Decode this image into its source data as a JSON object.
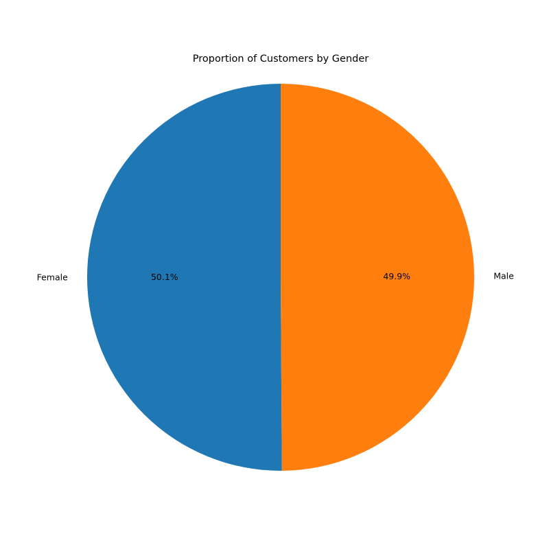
{
  "chart_data": {
    "type": "pie",
    "title": "Proportion of Customers by Gender",
    "slices": [
      {
        "label": "Female",
        "value": 50.1,
        "pct_label": "50.1%",
        "color": "#1f77b4"
      },
      {
        "label": "Male",
        "value": 49.9,
        "pct_label": "49.9%",
        "color": "#ff7f0e"
      }
    ],
    "start_angle_deg": 90,
    "direction": "counterclockwise",
    "legend": "none"
  }
}
